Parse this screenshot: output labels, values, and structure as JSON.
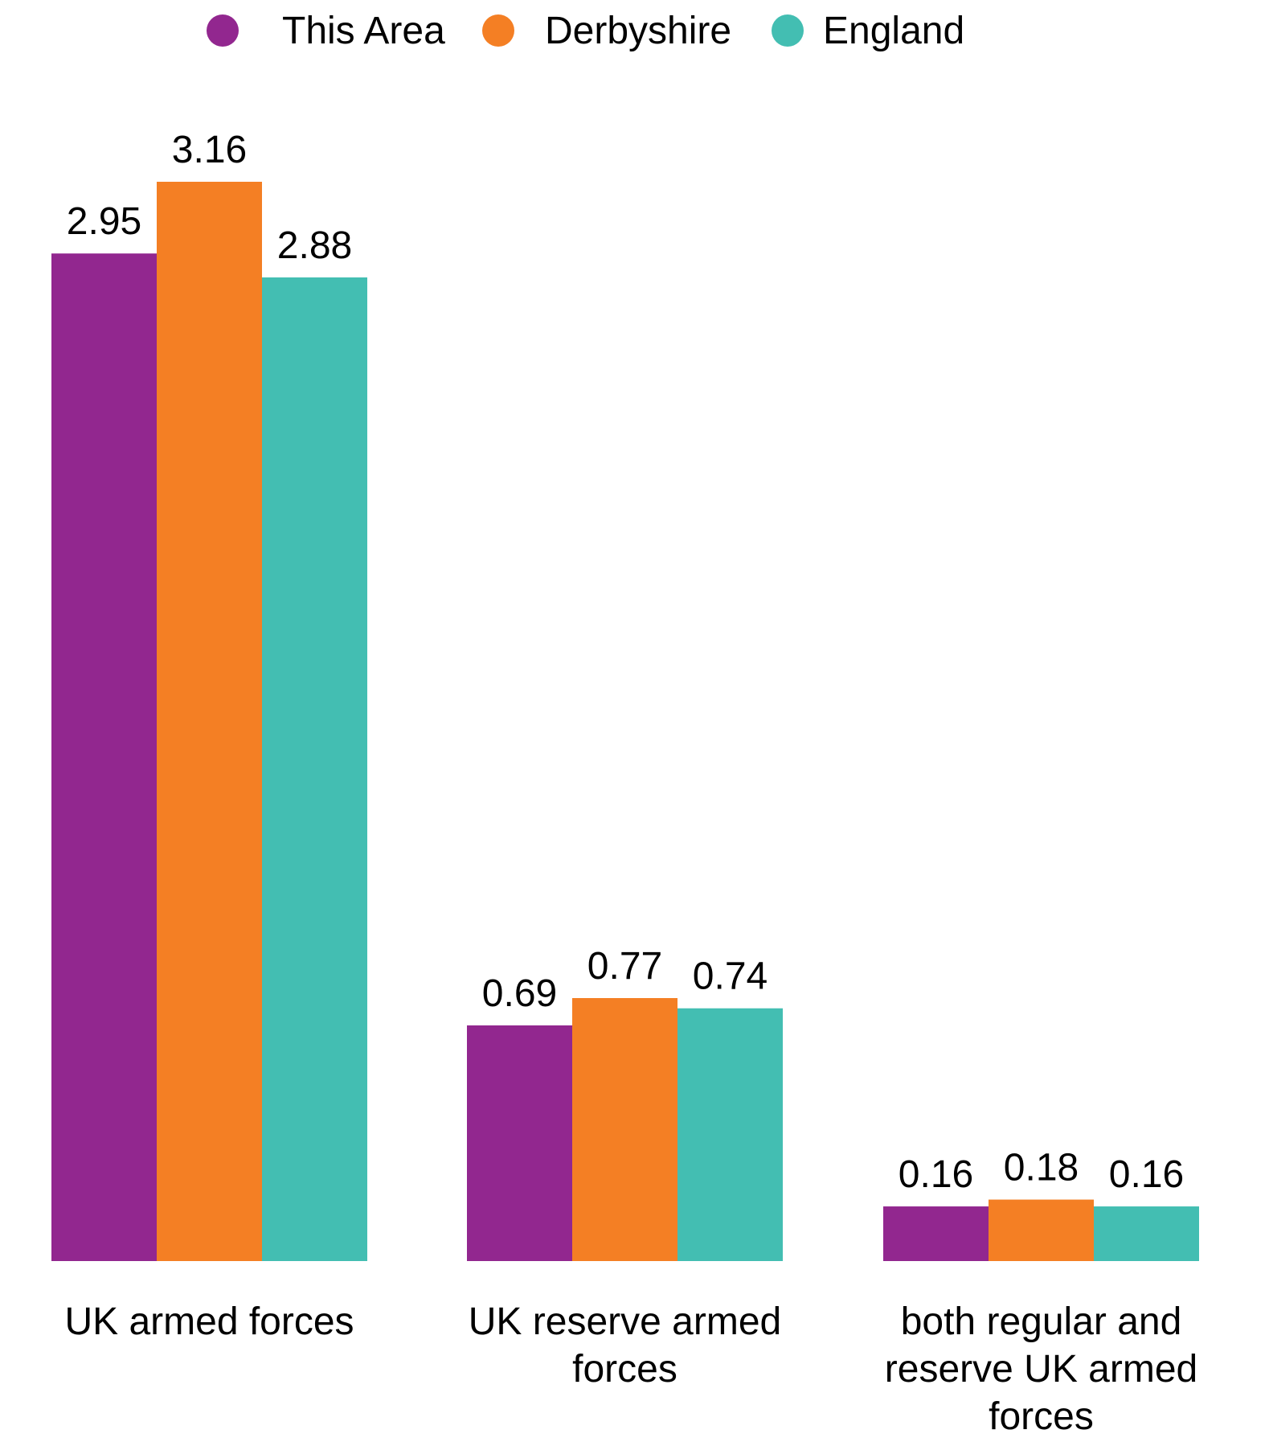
{
  "chart_data": {
    "type": "bar",
    "categories": [
      [
        "UK armed forces"
      ],
      [
        "UK reserve armed",
        "forces"
      ],
      [
        "both regular and",
        "reserve UK armed",
        "forces"
      ]
    ],
    "series": [
      {
        "name": "This Area",
        "color": "#92278F",
        "values": [
          2.95,
          0.69,
          0.16
        ]
      },
      {
        "name": "Derbyshire",
        "color": "#F47F24",
        "values": [
          3.16,
          0.77,
          0.18
        ]
      },
      {
        "name": "England",
        "color": "#43BEB2",
        "values": [
          2.88,
          0.74,
          0.16
        ]
      }
    ],
    "legend_position": "top-center",
    "grid": false,
    "ylim": [
      0,
      3.16
    ],
    "show_data_labels": true
  }
}
